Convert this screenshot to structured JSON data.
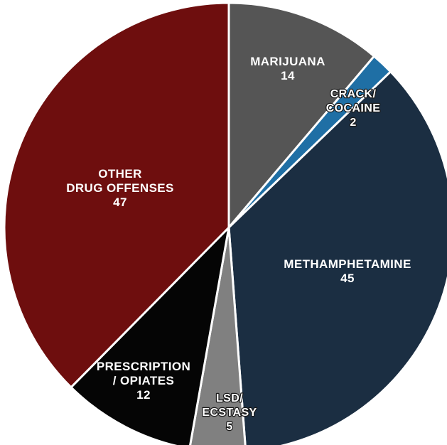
{
  "chart_data": {
    "type": "pie",
    "slices": [
      {
        "label_lines": [
          "MARIJUANA"
        ],
        "value": 14,
        "color": "#555555"
      },
      {
        "label_lines": [
          "CRACK/",
          "COCAINE"
        ],
        "value": 2,
        "color": "#1f6fa5"
      },
      {
        "label_lines": [
          "METHAMPHETAMINE"
        ],
        "value": 45,
        "color": "#1b2e42"
      },
      {
        "label_lines": [
          "LSD/",
          "ECSTASY"
        ],
        "value": 5,
        "color": "#808080"
      },
      {
        "label_lines": [
          "PRESCRIPTION",
          "/ OPIATES"
        ],
        "value": 12,
        "color": "#050505"
      },
      {
        "label_lines": [
          "OTHER",
          "DRUG OFFENSES"
        ],
        "value": 47,
        "color": "#6e0e0e"
      }
    ],
    "title": "",
    "legend": "none"
  }
}
